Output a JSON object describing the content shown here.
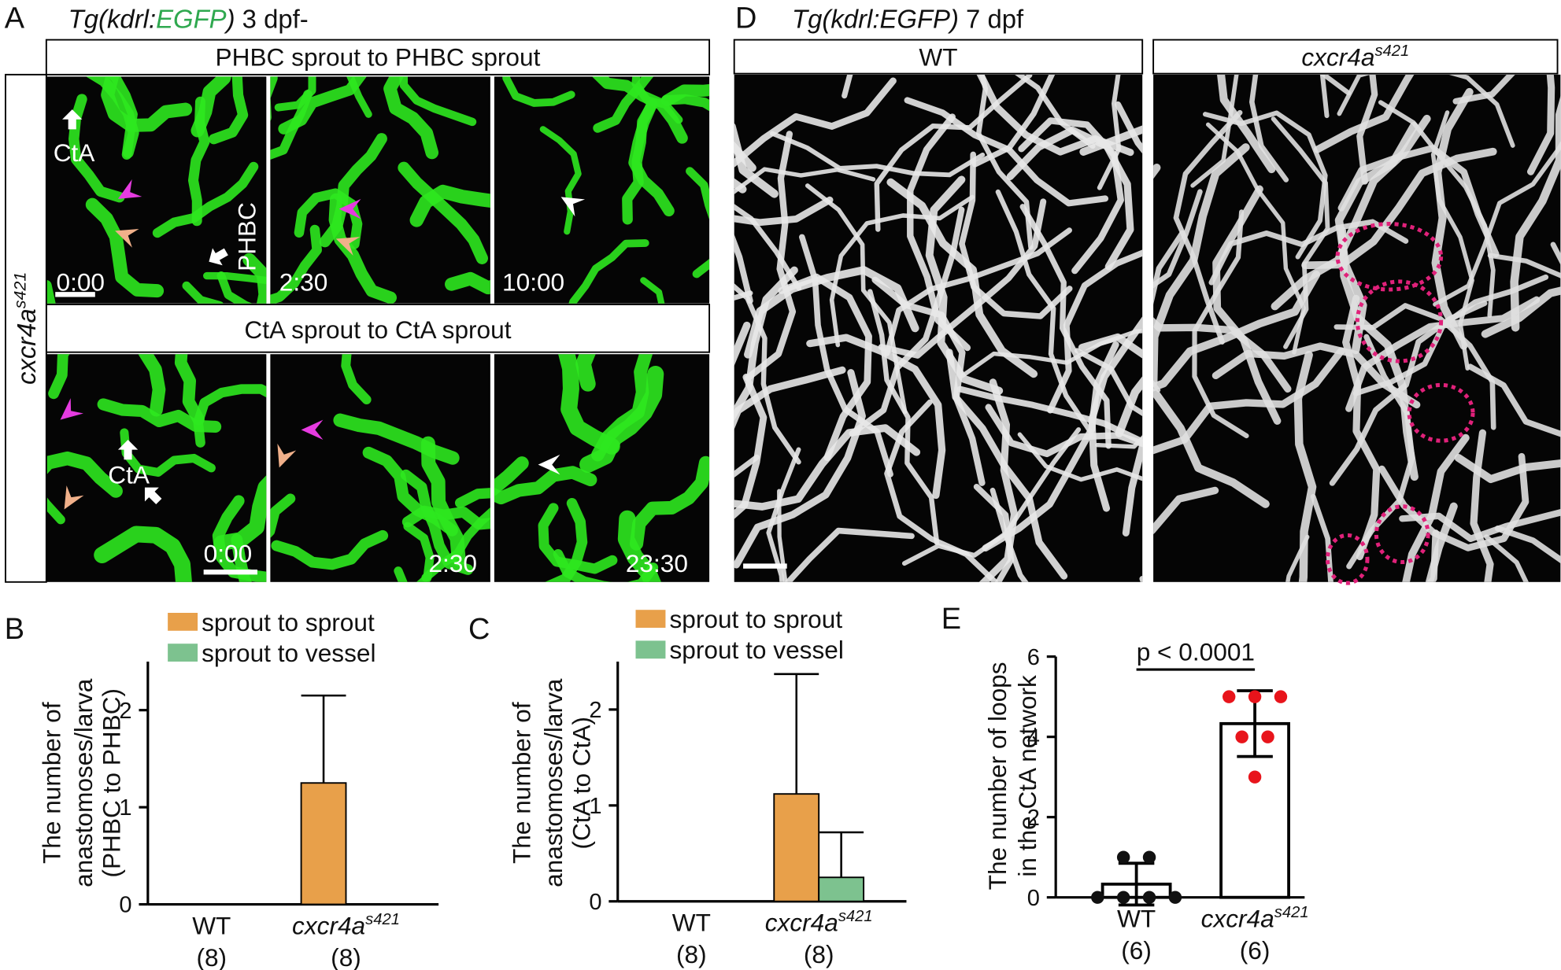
{
  "panel_labels": [
    "A",
    "B",
    "C",
    "D",
    "E"
  ],
  "panel_a": {
    "title_parts": [
      "Tg(kdrl:",
      "EGFP",
      ")",
      " 3 dpf-"
    ],
    "side_label": {
      "name": "cxcr4a",
      "sup": "s421"
    },
    "rows": [
      {
        "header": "PHBC sprout to PHBC sprout",
        "timestamps": [
          "0:00",
          "2:30",
          "10:00"
        ],
        "labels": [
          "CtA",
          "PHBC"
        ]
      },
      {
        "header": "CtA sprout to CtA sprout",
        "timestamps": [
          "0:00",
          "2:30",
          "23:30"
        ],
        "labels": [
          "CtA"
        ]
      }
    ]
  },
  "panel_d": {
    "title_parts": [
      "Tg(kdrl:EGFP)",
      " 7 dpf"
    ],
    "headers": [
      {
        "name": "WT"
      },
      {
        "name": "cxcr4a",
        "sup": "s421"
      }
    ]
  },
  "chart_data": [
    {
      "type": "bar",
      "ylabel": [
        "The number of",
        "anastomoses/larva",
        "(PHBC to PHBC)"
      ],
      "categories": [
        {
          "name": "WT"
        },
        {
          "name": "cxcr4a",
          "sup": "s421"
        }
      ],
      "n_labels": [
        "(8)",
        "(8)"
      ],
      "series": [
        {
          "name": "sprout to sprout",
          "color": "#e8a04a",
          "values": [
            0,
            1.25
          ],
          "errors": [
            0,
            0.9
          ]
        },
        {
          "name": "sprout to vessel",
          "color": "#7dc28f",
          "values": [
            0,
            0
          ],
          "errors": [
            0,
            0
          ]
        }
      ],
      "ylim": [
        0,
        2.5
      ],
      "yticks": [
        0,
        1,
        2
      ]
    },
    {
      "type": "bar",
      "ylabel": [
        "The number of",
        "anastomoses/larva",
        "(CtA to CtA)"
      ],
      "categories": [
        {
          "name": "WT"
        },
        {
          "name": "cxcr4a",
          "sup": "s421"
        }
      ],
      "n_labels": [
        "(8)",
        "(8)"
      ],
      "series": [
        {
          "name": "sprout to sprout",
          "color": "#e8a04a",
          "values": [
            0,
            1.12
          ],
          "errors": [
            0,
            1.25
          ]
        },
        {
          "name": "sprout to vessel",
          "color": "#7dc28f",
          "values": [
            0,
            0.25
          ],
          "errors": [
            0,
            0.47
          ]
        }
      ],
      "ylim": [
        0,
        2.5
      ],
      "yticks": [
        0,
        1,
        2
      ]
    },
    {
      "type": "bar_scatter",
      "ylabel": [
        "The number of loops",
        "in the CtA network"
      ],
      "annotation": "p < 0.0001",
      "categories": [
        {
          "name": "WT"
        },
        {
          "name": "cxcr4a",
          "sup": "s421"
        }
      ],
      "n_labels": [
        "(6)",
        "(6)"
      ],
      "values": [
        0.33,
        4.33
      ],
      "errors": [
        0.52,
        0.82
      ],
      "points": [
        [
          0,
          0,
          0,
          0,
          1,
          1
        ],
        [
          5,
          5,
          5,
          4,
          4,
          3
        ]
      ],
      "colors": [
        "#111111",
        "#e8141b"
      ],
      "ylim": [
        0,
        6
      ],
      "yticks": [
        0,
        2,
        4,
        6
      ]
    }
  ]
}
